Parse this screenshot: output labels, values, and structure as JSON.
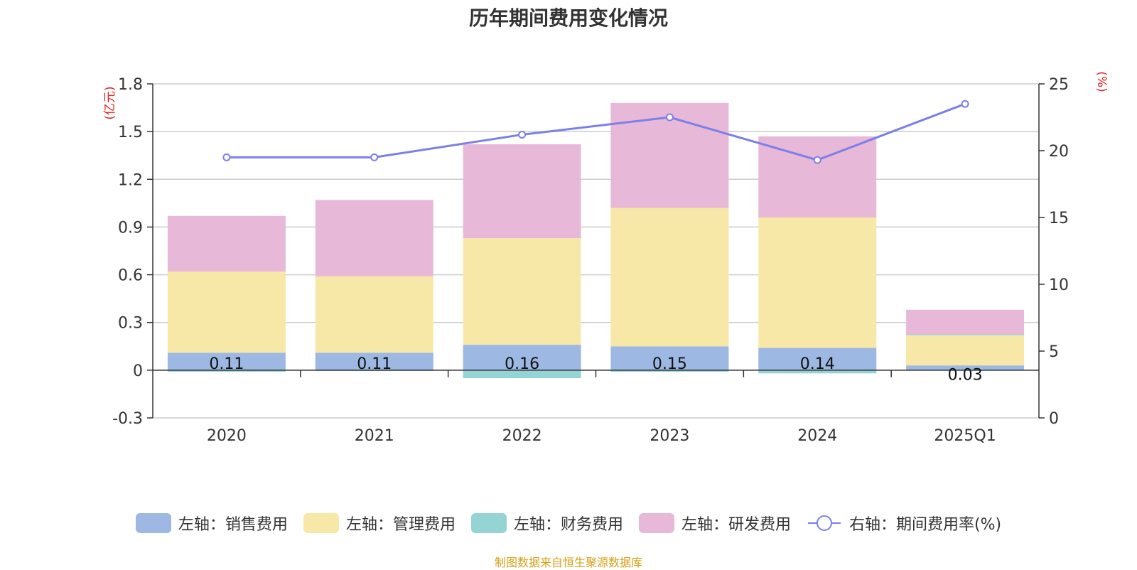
{
  "chart_data": {
    "type": "bar",
    "title": "历年期间费用变化情况",
    "categories": [
      "2020",
      "2021",
      "2022",
      "2023",
      "2024",
      "2025Q1"
    ],
    "left_axis": {
      "unit_label": "(亿元)",
      "ylim": [
        -0.3,
        1.8
      ],
      "ticks": [
        -0.3,
        0,
        0.3,
        0.6,
        0.9,
        1.2,
        1.5,
        1.8
      ],
      "tick_labels": [
        "-0.3",
        "0",
        "0.3",
        "0.6",
        "0.9",
        "1.2",
        "1.5",
        "1.8"
      ]
    },
    "right_axis": {
      "unit_label": "(%)",
      "ylim": [
        0,
        25
      ],
      "ticks": [
        0,
        5,
        10,
        15,
        20,
        25
      ],
      "tick_labels": [
        "0",
        "5",
        "10",
        "15",
        "20",
        "25"
      ]
    },
    "series": [
      {
        "name": "左轴：销售费用",
        "kind": "bar",
        "axis": "left",
        "color": "#9db8e3",
        "values": [
          0.11,
          0.11,
          0.16,
          0.15,
          0.14,
          0.03
        ],
        "labels": [
          "0.11",
          "0.11",
          "0.16",
          "0.15",
          "0.14",
          "0.03"
        ]
      },
      {
        "name": "左轴：管理费用",
        "kind": "bar",
        "axis": "left",
        "color": "#f8e8a8",
        "values": [
          0.51,
          0.48,
          0.67,
          0.87,
          0.82,
          0.19
        ]
      },
      {
        "name": "左轴：财务费用",
        "kind": "bar",
        "axis": "left",
        "color": "#95d4d4",
        "values": [
          -0.01,
          -0.005,
          -0.05,
          -0.01,
          -0.02,
          0.005
        ]
      },
      {
        "name": "左轴：研发费用",
        "kind": "bar",
        "axis": "left",
        "color": "#e8b8d8",
        "values": [
          0.35,
          0.48,
          0.59,
          0.66,
          0.51,
          0.155
        ]
      },
      {
        "name": "右轴：期间费用率(%)",
        "kind": "line",
        "axis": "right",
        "color": "#7b80e8",
        "values": [
          19.5,
          19.5,
          21.2,
          22.5,
          19.3,
          23.5
        ]
      }
    ],
    "source": "制图数据来自恒生聚源数据库"
  }
}
